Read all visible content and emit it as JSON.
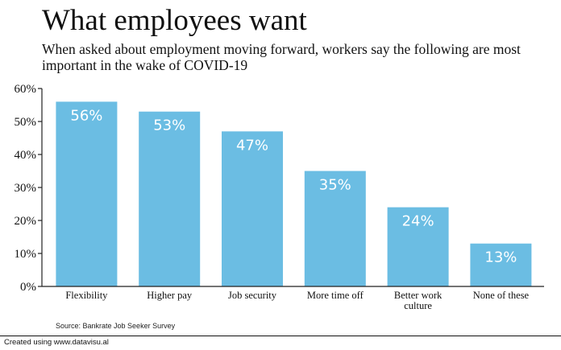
{
  "title": "What employees want",
  "subtitle": "When asked about employment moving forward, workers say the following are most important in the wake of COVID-19",
  "source": "Source: Bankrate Job Seeker Survey",
  "credit": "Created using www.datavisu.al",
  "colors": {
    "bar": "#6bbde3",
    "bar_label": "#ffffff",
    "axis": "#222222"
  },
  "chart_data": {
    "type": "bar",
    "title": "What employees want",
    "subtitle": "When asked about employment moving forward, workers say the following are most important in the wake of COVID-19",
    "xlabel": "",
    "ylabel": "",
    "categories": [
      "Flexibility",
      "Higher pay",
      "Job security",
      "More time off",
      "Better work culture",
      "None of these"
    ],
    "category_lines": [
      [
        "Flexibility"
      ],
      [
        "Higher pay"
      ],
      [
        "Job security"
      ],
      [
        "More time off"
      ],
      [
        "Better work",
        "culture"
      ],
      [
        "None of these"
      ]
    ],
    "values": [
      56,
      53,
      47,
      35,
      24,
      13
    ],
    "data_labels": [
      "56%",
      "53%",
      "47%",
      "35%",
      "24%",
      "13%"
    ],
    "ylim": [
      0,
      60
    ],
    "yticks": [
      0,
      10,
      20,
      30,
      40,
      50,
      60
    ],
    "ytick_labels": [
      "0%",
      "10%",
      "20%",
      "30%",
      "40%",
      "50%",
      "60%"
    ],
    "grid": false,
    "legend": "none"
  }
}
